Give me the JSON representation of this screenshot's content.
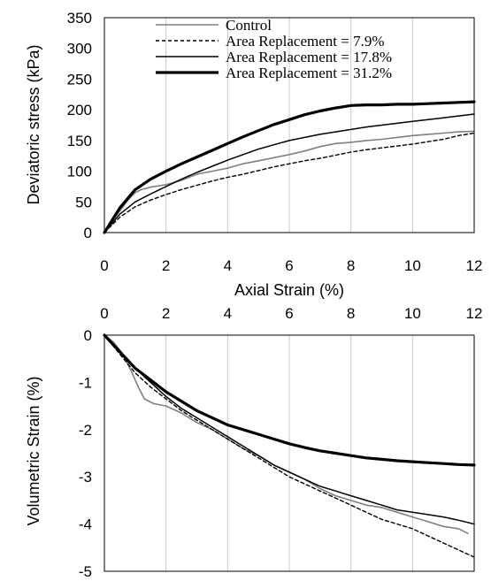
{
  "legend": {
    "control": "Control",
    "ar79": "Area Replacement = 7.9%",
    "ar178": "Area Replacement = 17.8%",
    "ar312": "Area Replacement = 31.2%"
  },
  "chart_data": [
    {
      "type": "line",
      "title": "",
      "xlabel": "Axial Strain (%)",
      "ylabel": "Deviatoric stress (kPa)",
      "xlim": [
        0,
        12
      ],
      "ylim": [
        0,
        350
      ],
      "xticks": [
        "0",
        "2",
        "4",
        "6",
        "8",
        "10",
        "12"
      ],
      "yticks": [
        "0",
        "50",
        "100",
        "150",
        "200",
        "250",
        "300",
        "350"
      ],
      "grid": "vertical",
      "legend_position": "top-center",
      "series": [
        {
          "name": "Control",
          "color": "#808080",
          "width": 1.6,
          "dash": "",
          "x": [
            0,
            0.2,
            0.5,
            0.8,
            1,
            1.2,
            1.5,
            2,
            2.5,
            3,
            3.5,
            4,
            4.5,
            5,
            5.5,
            6,
            6.5,
            7,
            7.5,
            8,
            8.5,
            9,
            9.5,
            10,
            10.5,
            11,
            11.5,
            12
          ],
          "y": [
            0,
            15,
            35,
            55,
            65,
            70,
            74,
            78,
            85,
            95,
            100,
            105,
            112,
            117,
            122,
            127,
            133,
            140,
            145,
            147,
            150,
            152,
            155,
            158,
            160,
            162,
            164,
            165
          ]
        },
        {
          "name": "Area Replacement = 7.9%",
          "color": "#000000",
          "width": 1.4,
          "dash": "4 3",
          "x": [
            0,
            0.5,
            1,
            1.5,
            2,
            2.5,
            3,
            3.5,
            4,
            4.5,
            5,
            5.5,
            6,
            6.5,
            7,
            7.5,
            8,
            8.5,
            9,
            9.5,
            10,
            10.5,
            11,
            11.5,
            12
          ],
          "y": [
            0,
            25,
            42,
            53,
            62,
            70,
            77,
            84,
            90,
            95,
            101,
            107,
            112,
            117,
            121,
            126,
            131,
            135,
            138,
            141,
            144,
            148,
            152,
            158,
            162
          ]
        },
        {
          "name": "Area Replacement = 17.8%",
          "color": "#000000",
          "width": 1.5,
          "dash": "",
          "x": [
            0,
            0.5,
            1,
            1.5,
            2,
            2.5,
            3,
            3.5,
            4,
            4.5,
            5,
            5.5,
            6,
            6.5,
            7,
            7.5,
            8,
            8.5,
            9,
            9.5,
            10,
            10.5,
            11,
            11.5,
            12
          ],
          "y": [
            0,
            30,
            50,
            63,
            75,
            87,
            98,
            108,
            118,
            127,
            136,
            143,
            150,
            155,
            160,
            164,
            168,
            172,
            175,
            178,
            181,
            184,
            187,
            190,
            193
          ]
        },
        {
          "name": "Area Replacement = 31.2%",
          "color": "#000000",
          "width": 3.2,
          "dash": "",
          "x": [
            0,
            0.5,
            1,
            1.5,
            2,
            2.5,
            3,
            3.5,
            4,
            4.5,
            5,
            5.5,
            6,
            6.5,
            7,
            7.5,
            8,
            8.5,
            9,
            9.5,
            10,
            10.5,
            11,
            11.5,
            12
          ],
          "y": [
            0,
            40,
            70,
            87,
            100,
            112,
            123,
            134,
            145,
            156,
            166,
            176,
            184,
            192,
            198,
            203,
            207,
            208,
            208,
            209,
            209,
            210,
            211,
            212,
            213
          ]
        }
      ]
    },
    {
      "type": "line",
      "title": "",
      "xlabel": "",
      "ylabel": "Volumetric Strain (%)",
      "xlim": [
        0,
        12
      ],
      "ylim": [
        -5,
        0
      ],
      "xaxis_position": "top",
      "xticks": [
        "0",
        "2",
        "4",
        "6",
        "8",
        "10",
        "12"
      ],
      "yticks": [
        "0",
        "-1",
        "-2",
        "-3",
        "-4",
        "-5"
      ],
      "grid": "vertical",
      "series": [
        {
          "name": "Control",
          "color": "#808080",
          "width": 1.6,
          "dash": "",
          "x": [
            0,
            0.3,
            0.6,
            0.9,
            1.1,
            1.3,
            1.6,
            2,
            2.5,
            3,
            3.5,
            4,
            4.5,
            5,
            5.5,
            6,
            6.5,
            7,
            7.5,
            8,
            8.5,
            9,
            9.5,
            10,
            10.5,
            11,
            11.5,
            11.8
          ],
          "y": [
            0,
            -0.15,
            -0.4,
            -0.8,
            -1.1,
            -1.35,
            -1.45,
            -1.5,
            -1.65,
            -1.85,
            -2.0,
            -2.2,
            -2.4,
            -2.55,
            -2.75,
            -2.9,
            -3.05,
            -3.25,
            -3.4,
            -3.5,
            -3.6,
            -3.65,
            -3.75,
            -3.85,
            -3.95,
            -4.05,
            -4.1,
            -4.2
          ]
        },
        {
          "name": "Area Replacement = 7.9%",
          "color": "#000000",
          "width": 1.4,
          "dash": "4 3",
          "x": [
            0,
            0.5,
            1,
            1.5,
            2,
            2.5,
            3,
            3.5,
            4,
            4.5,
            5,
            5.5,
            6,
            6.5,
            7,
            7.5,
            8,
            8.5,
            9,
            9.5,
            10,
            10.5,
            11,
            11.5,
            12
          ],
          "y": [
            0,
            -0.4,
            -0.8,
            -1.1,
            -1.35,
            -1.6,
            -1.8,
            -2.0,
            -2.2,
            -2.4,
            -2.6,
            -2.8,
            -3.0,
            -3.15,
            -3.3,
            -3.45,
            -3.6,
            -3.75,
            -3.9,
            -4.0,
            -4.1,
            -4.25,
            -4.4,
            -4.55,
            -4.7
          ]
        },
        {
          "name": "Area Replacement = 17.8%",
          "color": "#000000",
          "width": 1.5,
          "dash": "",
          "x": [
            0,
            0.5,
            1,
            1.5,
            2,
            2.5,
            3,
            3.5,
            4,
            4.5,
            5,
            5.5,
            6,
            6.5,
            7,
            7.5,
            8,
            8.5,
            9,
            9.5,
            10,
            10.5,
            11,
            11.5,
            12
          ],
          "y": [
            0,
            -0.35,
            -0.7,
            -1.0,
            -1.3,
            -1.55,
            -1.75,
            -1.95,
            -2.15,
            -2.35,
            -2.55,
            -2.75,
            -2.9,
            -3.05,
            -3.2,
            -3.3,
            -3.4,
            -3.5,
            -3.6,
            -3.7,
            -3.75,
            -3.8,
            -3.85,
            -3.92,
            -4.0
          ]
        },
        {
          "name": "Area Replacement = 31.2%",
          "color": "#000000",
          "width": 3.2,
          "dash": "",
          "x": [
            0,
            0.5,
            1,
            1.5,
            2,
            2.5,
            3,
            3.5,
            4,
            4.5,
            5,
            5.5,
            6,
            6.5,
            7,
            7.5,
            8,
            8.5,
            9,
            9.5,
            10,
            10.5,
            11,
            11.5,
            12
          ],
          "y": [
            0,
            -0.35,
            -0.7,
            -0.95,
            -1.2,
            -1.4,
            -1.6,
            -1.75,
            -1.9,
            -2.0,
            -2.1,
            -2.2,
            -2.3,
            -2.38,
            -2.45,
            -2.5,
            -2.55,
            -2.6,
            -2.63,
            -2.66,
            -2.68,
            -2.7,
            -2.72,
            -2.74,
            -2.75
          ]
        }
      ]
    }
  ]
}
